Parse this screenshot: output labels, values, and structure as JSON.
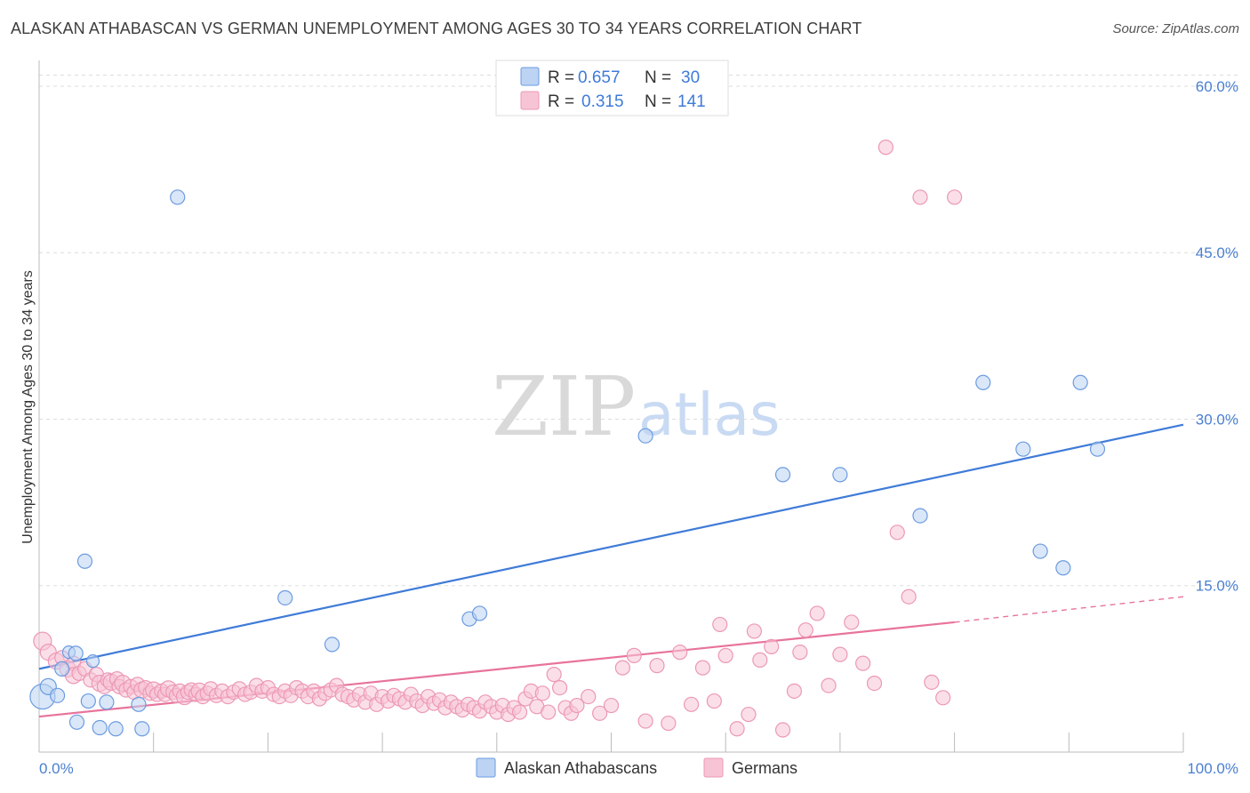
{
  "title": "ALASKAN ATHABASCAN VS GERMAN UNEMPLOYMENT AMONG AGES 30 TO 34 YEARS CORRELATION CHART",
  "source": "Source: ZipAtlas.com",
  "watermark": {
    "zip": "ZIP",
    "atlas": "atlas"
  },
  "colors": {
    "blue": "#3f7bd8",
    "blue_fill": "#bcd3f3",
    "blue_stroke": "#6b9be0",
    "pink": "#e8739c",
    "pink_fill": "#f7c4d5",
    "pink_stroke": "#ec98b6",
    "grid": "#dddddd",
    "tick_text": "#4a7fd0"
  },
  "legend": {
    "rows": [
      {
        "r_label": "R =",
        "r_value": "0.657",
        "n_label": "N =",
        "n_value": "30"
      },
      {
        "r_label": "R =",
        "r_value": "0.315",
        "n_label": "N =",
        "n_value": "141"
      }
    ]
  },
  "chart_data": {
    "type": "scatter",
    "title": "ALASKAN ATHABASCAN VS GERMAN UNEMPLOYMENT AMONG AGES 30 TO 34 YEARS CORRELATION CHART",
    "xlabel": "",
    "ylabel": "Unemployment Among Ages 30 to 34 years",
    "xlim": [
      0,
      100
    ],
    "ylim": [
      0,
      62
    ],
    "x_tick_labels": [
      "0.0%",
      "100.0%"
    ],
    "y_ticks": [
      15,
      30,
      45,
      60
    ],
    "y_tick_labels": [
      "15.0%",
      "30.0%",
      "45.0%",
      "60.0%"
    ],
    "grid": true,
    "legend_position": "bottom-center",
    "series": [
      {
        "name": "Alaskan Athabascans",
        "color": "#3f7bd8",
        "r": 0.657,
        "n": 30,
        "trend": {
          "x": [
            0,
            100
          ],
          "y": [
            7.5,
            29.5
          ],
          "dash_after": null
        },
        "points": [
          [
            0.3,
            5.0,
            14
          ],
          [
            0.8,
            5.9,
            9
          ],
          [
            1.6,
            5.1,
            8
          ],
          [
            2.0,
            7.5,
            8
          ],
          [
            2.6,
            9.0,
            7
          ],
          [
            3.2,
            8.9,
            8
          ],
          [
            3.3,
            2.7,
            8
          ],
          [
            4.0,
            17.2,
            8
          ],
          [
            4.3,
            4.6,
            8
          ],
          [
            4.7,
            8.2,
            7
          ],
          [
            5.3,
            2.2,
            8
          ],
          [
            5.9,
            4.5,
            8
          ],
          [
            6.7,
            2.1,
            8
          ],
          [
            8.7,
            4.3,
            8
          ],
          [
            9.0,
            2.1,
            8
          ],
          [
            12.1,
            50.0,
            8
          ],
          [
            21.5,
            13.9,
            8
          ],
          [
            25.6,
            9.7,
            8
          ],
          [
            37.6,
            12.0,
            8
          ],
          [
            38.5,
            12.5,
            8
          ],
          [
            53.0,
            28.5,
            8
          ],
          [
            65.0,
            25.0,
            8
          ],
          [
            70.0,
            25.0,
            8
          ],
          [
            77.0,
            21.3,
            8
          ],
          [
            82.5,
            33.3,
            8
          ],
          [
            86.0,
            27.3,
            8
          ],
          [
            87.5,
            18.1,
            8
          ],
          [
            89.5,
            16.6,
            8
          ],
          [
            91.0,
            33.3,
            8
          ],
          [
            92.5,
            27.3,
            8
          ]
        ]
      },
      {
        "name": "Germans",
        "color": "#e8739c",
        "r": 0.315,
        "n": 141,
        "trend": {
          "x": [
            0,
            80,
            100
          ],
          "y": [
            3.2,
            11.7,
            14.0
          ],
          "dash_after": 80
        },
        "points": [
          [
            0.3,
            10.0,
            10
          ],
          [
            0.8,
            9.0,
            9
          ],
          [
            1.5,
            8.2,
            9
          ],
          [
            2.0,
            8.5,
            8
          ],
          [
            2.5,
            7.5,
            9
          ],
          [
            3.0,
            8.0,
            8
          ],
          [
            3.0,
            6.9,
            9
          ],
          [
            3.5,
            7.1,
            8
          ],
          [
            4.0,
            7.5,
            8
          ],
          [
            4.5,
            6.5,
            8
          ],
          [
            5.0,
            7.0,
            8
          ],
          [
            5.3,
            6.2,
            9
          ],
          [
            5.7,
            5.9,
            8
          ],
          [
            6.0,
            6.5,
            8
          ],
          [
            6.3,
            6.3,
            9
          ],
          [
            6.8,
            6.6,
            8
          ],
          [
            7.0,
            5.9,
            8
          ],
          [
            7.3,
            6.2,
            9
          ],
          [
            7.6,
            5.6,
            8
          ],
          [
            8.0,
            5.9,
            8
          ],
          [
            8.3,
            5.4,
            8
          ],
          [
            8.6,
            6.1,
            8
          ],
          [
            9.0,
            5.6,
            9
          ],
          [
            9.3,
            5.8,
            8
          ],
          [
            9.7,
            5.3,
            8
          ],
          [
            10.0,
            5.6,
            9
          ],
          [
            10.3,
            5.2,
            8
          ],
          [
            10.7,
            5.5,
            8
          ],
          [
            11.0,
            5.2,
            8
          ],
          [
            11.3,
            5.7,
            9
          ],
          [
            11.7,
            5.4,
            8
          ],
          [
            12.0,
            5.1,
            8
          ],
          [
            12.3,
            5.5,
            8
          ],
          [
            12.7,
            5.0,
            9
          ],
          [
            13.0,
            5.4,
            8
          ],
          [
            13.3,
            5.6,
            8
          ],
          [
            13.7,
            5.2,
            8
          ],
          [
            14.0,
            5.5,
            9
          ],
          [
            14.3,
            5.0,
            8
          ],
          [
            14.7,
            5.3,
            8
          ],
          [
            15.0,
            5.7,
            8
          ],
          [
            15.5,
            5.1,
            8
          ],
          [
            16.0,
            5.5,
            8
          ],
          [
            16.5,
            5.0,
            8
          ],
          [
            17.0,
            5.4,
            8
          ],
          [
            17.5,
            5.7,
            8
          ],
          [
            18.0,
            5.2,
            8
          ],
          [
            18.5,
            5.4,
            8
          ],
          [
            19.0,
            6.0,
            8
          ],
          [
            19.5,
            5.5,
            8
          ],
          [
            20.0,
            5.8,
            8
          ],
          [
            20.5,
            5.2,
            8
          ],
          [
            21.0,
            5.0,
            8
          ],
          [
            21.5,
            5.5,
            8
          ],
          [
            22.0,
            5.1,
            8
          ],
          [
            22.5,
            5.8,
            8
          ],
          [
            23.0,
            5.5,
            8
          ],
          [
            23.5,
            5.0,
            8
          ],
          [
            24.0,
            5.5,
            8
          ],
          [
            24.5,
            4.8,
            8
          ],
          [
            25.0,
            5.3,
            8
          ],
          [
            25.5,
            5.6,
            8
          ],
          [
            26.0,
            6.0,
            8
          ],
          [
            26.5,
            5.2,
            8
          ],
          [
            27.0,
            5.0,
            8
          ],
          [
            27.5,
            4.7,
            8
          ],
          [
            28.0,
            5.2,
            8
          ],
          [
            28.5,
            4.5,
            8
          ],
          [
            29.0,
            5.3,
            8
          ],
          [
            29.5,
            4.3,
            8
          ],
          [
            30.0,
            5.0,
            8
          ],
          [
            30.5,
            4.6,
            8
          ],
          [
            31.0,
            5.1,
            8
          ],
          [
            31.5,
            4.8,
            8
          ],
          [
            32.0,
            4.5,
            8
          ],
          [
            32.5,
            5.2,
            8
          ],
          [
            33.0,
            4.6,
            8
          ],
          [
            33.5,
            4.2,
            8
          ],
          [
            34.0,
            5.0,
            8
          ],
          [
            34.5,
            4.4,
            8
          ],
          [
            35.0,
            4.7,
            8
          ],
          [
            35.5,
            4.0,
            8
          ],
          [
            36.0,
            4.5,
            8
          ],
          [
            36.5,
            4.1,
            8
          ],
          [
            37.0,
            3.8,
            8
          ],
          [
            37.5,
            4.3,
            8
          ],
          [
            38.0,
            4.0,
            8
          ],
          [
            38.5,
            3.7,
            8
          ],
          [
            39.0,
            4.5,
            8
          ],
          [
            39.5,
            4.1,
            8
          ],
          [
            40.0,
            3.6,
            8
          ],
          [
            40.5,
            4.2,
            8
          ],
          [
            41.0,
            3.4,
            8
          ],
          [
            41.5,
            4.0,
            8
          ],
          [
            42.0,
            3.6,
            8
          ],
          [
            42.5,
            4.8,
            8
          ],
          [
            43.0,
            5.5,
            8
          ],
          [
            43.5,
            4.1,
            8
          ],
          [
            44.0,
            5.3,
            8
          ],
          [
            44.5,
            3.6,
            8
          ],
          [
            45.0,
            7.0,
            8
          ],
          [
            45.5,
            5.8,
            8
          ],
          [
            46.0,
            4.0,
            8
          ],
          [
            46.5,
            3.5,
            8
          ],
          [
            47.0,
            4.2,
            8
          ],
          [
            48.0,
            5.0,
            8
          ],
          [
            49.0,
            3.5,
            8
          ],
          [
            50.0,
            4.2,
            8
          ],
          [
            51.0,
            7.6,
            8
          ],
          [
            52.0,
            8.7,
            8
          ],
          [
            53.0,
            2.8,
            8
          ],
          [
            54.0,
            7.8,
            8
          ],
          [
            55.0,
            2.6,
            8
          ],
          [
            56.0,
            9.0,
            8
          ],
          [
            57.0,
            4.3,
            8
          ],
          [
            58.0,
            7.6,
            8
          ],
          [
            59.0,
            4.6,
            8
          ],
          [
            60.0,
            8.7,
            8
          ],
          [
            61.0,
            2.1,
            8
          ],
          [
            62.0,
            3.4,
            8
          ],
          [
            63.0,
            8.3,
            8
          ],
          [
            64.0,
            9.5,
            8
          ],
          [
            65.0,
            2.0,
            8
          ],
          [
            66.0,
            5.5,
            8
          ],
          [
            67.0,
            11.0,
            8
          ],
          [
            68.0,
            12.5,
            8
          ],
          [
            69.0,
            6.0,
            8
          ],
          [
            70.0,
            8.8,
            8
          ],
          [
            71.0,
            11.7,
            8
          ],
          [
            72.0,
            8.0,
            8
          ],
          [
            73.0,
            6.2,
            8
          ],
          [
            74.0,
            54.5,
            8
          ],
          [
            75.0,
            19.8,
            8
          ],
          [
            76.0,
            14.0,
            8
          ],
          [
            77.0,
            50.0,
            8
          ],
          [
            78.0,
            6.3,
            8
          ],
          [
            79.0,
            4.9,
            8
          ],
          [
            80.0,
            50.0,
            8
          ],
          [
            62.5,
            10.9,
            8
          ],
          [
            59.5,
            11.5,
            8
          ],
          [
            66.5,
            9.0,
            8
          ]
        ]
      }
    ]
  }
}
